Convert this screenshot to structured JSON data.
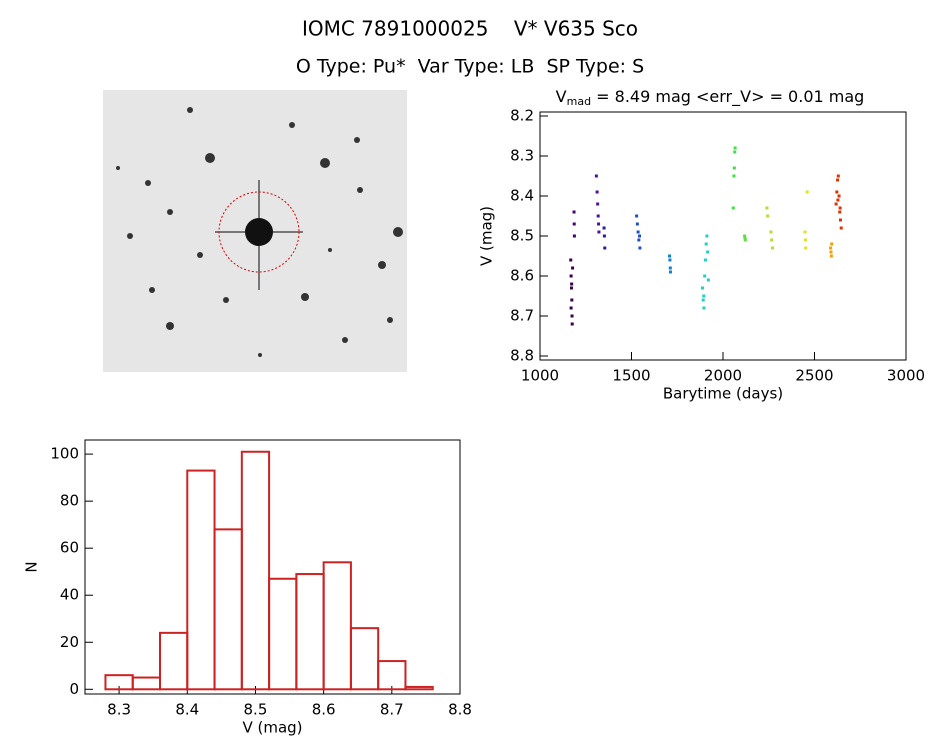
{
  "header": {
    "title": "IOMC 7891000025    V* V635 Sco",
    "subtitle": "O Type: Pu*  Var Type: LB  SP Type: S"
  },
  "chart_data": [
    {
      "type": "scatter",
      "title": "V",
      "title_sub": "mad",
      "title_rest": " = 8.49 mag <err_V> = 0.01 mag",
      "x_label": "Barytime (days)",
      "y_label": "V (mag)",
      "xlim": [
        1000,
        3000
      ],
      "xticks": [
        1000,
        1500,
        2000,
        2500,
        3000
      ],
      "ylim": [
        8.19,
        8.81
      ],
      "yticks": [
        8.2,
        8.3,
        8.4,
        8.5,
        8.6,
        8.7,
        8.8
      ],
      "y_inverted": true,
      "series": [
        {
          "color": "#3a0050",
          "x": [
            1168,
            1170,
            1172,
            1174,
            1175,
            1176,
            1178,
            1170,
            1173
          ],
          "values": [
            8.56,
            8.6,
            8.63,
            8.66,
            8.7,
            8.72,
            8.58,
            8.68,
            8.62
          ]
        },
        {
          "color": "#4a0070",
          "x": [
            1186,
            1187,
            1188
          ],
          "values": [
            8.44,
            8.47,
            8.5
          ]
        },
        {
          "color": "#5010a0",
          "x": [
            1308,
            1312,
            1315,
            1318,
            1320,
            1322
          ],
          "values": [
            8.35,
            8.39,
            8.42,
            8.45,
            8.47,
            8.49
          ]
        },
        {
          "color": "#2020a0",
          "x": [
            1350,
            1352,
            1354
          ],
          "values": [
            8.48,
            8.5,
            8.53
          ]
        },
        {
          "color": "#2050c0",
          "x": [
            1528,
            1532,
            1536,
            1540,
            1544,
            1546
          ],
          "values": [
            8.45,
            8.47,
            8.49,
            8.51,
            8.5,
            8.53
          ]
        },
        {
          "color": "#1080d0",
          "x": [
            1708,
            1710,
            1712,
            1713
          ],
          "values": [
            8.55,
            8.56,
            8.58,
            8.59
          ]
        },
        {
          "color": "#20d0c0",
          "x": [
            1888,
            1892,
            1896,
            1900,
            1904,
            1908,
            1912,
            1916,
            1920,
            1895
          ],
          "values": [
            8.63,
            8.66,
            8.68,
            8.6,
            8.56,
            8.52,
            8.5,
            8.54,
            8.61,
            8.65
          ]
        },
        {
          "color": "#40e040",
          "x": [
            2056,
            2060,
            2062,
            2064,
            2066
          ],
          "values": [
            8.43,
            8.35,
            8.33,
            8.29,
            8.28
          ]
        },
        {
          "color": "#60e040",
          "x": [
            2118,
            2120,
            2122
          ],
          "values": [
            8.5,
            8.505,
            8.51
          ]
        },
        {
          "color": "#b0e030",
          "x": [
            2240,
            2244,
            2262,
            2266,
            2270
          ],
          "values": [
            8.43,
            8.45,
            8.49,
            8.51,
            8.53
          ]
        },
        {
          "color": "#e0e020",
          "x": [
            2448,
            2450,
            2452,
            2460
          ],
          "values": [
            8.49,
            8.51,
            8.53,
            8.39
          ]
        },
        {
          "color": "#f0a000",
          "x": [
            2588,
            2590,
            2592,
            2594
          ],
          "values": [
            8.53,
            8.54,
            8.55,
            8.52
          ]
        },
        {
          "color": "#e03000",
          "x": [
            2618,
            2622,
            2626,
            2630,
            2634,
            2638,
            2642,
            2646,
            2628,
            2640
          ],
          "values": [
            8.42,
            8.39,
            8.36,
            8.35,
            8.4,
            8.44,
            8.46,
            8.48,
            8.41,
            8.43
          ]
        }
      ]
    },
    {
      "type": "histogram",
      "x_label": "V (mag)",
      "y_label": "N",
      "color": "#cc2222",
      "bins": [
        8.28,
        8.32,
        8.36,
        8.4,
        8.44,
        8.48,
        8.52,
        8.56,
        8.6,
        8.64,
        8.68,
        8.72,
        8.76
      ],
      "values": [
        6,
        5,
        24,
        93,
        68,
        101,
        47,
        49,
        54,
        26,
        12,
        1
      ],
      "xlim": [
        8.25,
        8.8
      ],
      "xticks": [
        8.3,
        8.4,
        8.5,
        8.6,
        8.7,
        8.8
      ],
      "ylim": [
        -2,
        106
      ],
      "yticks": [
        0,
        20,
        40,
        60,
        80,
        100
      ]
    }
  ]
}
